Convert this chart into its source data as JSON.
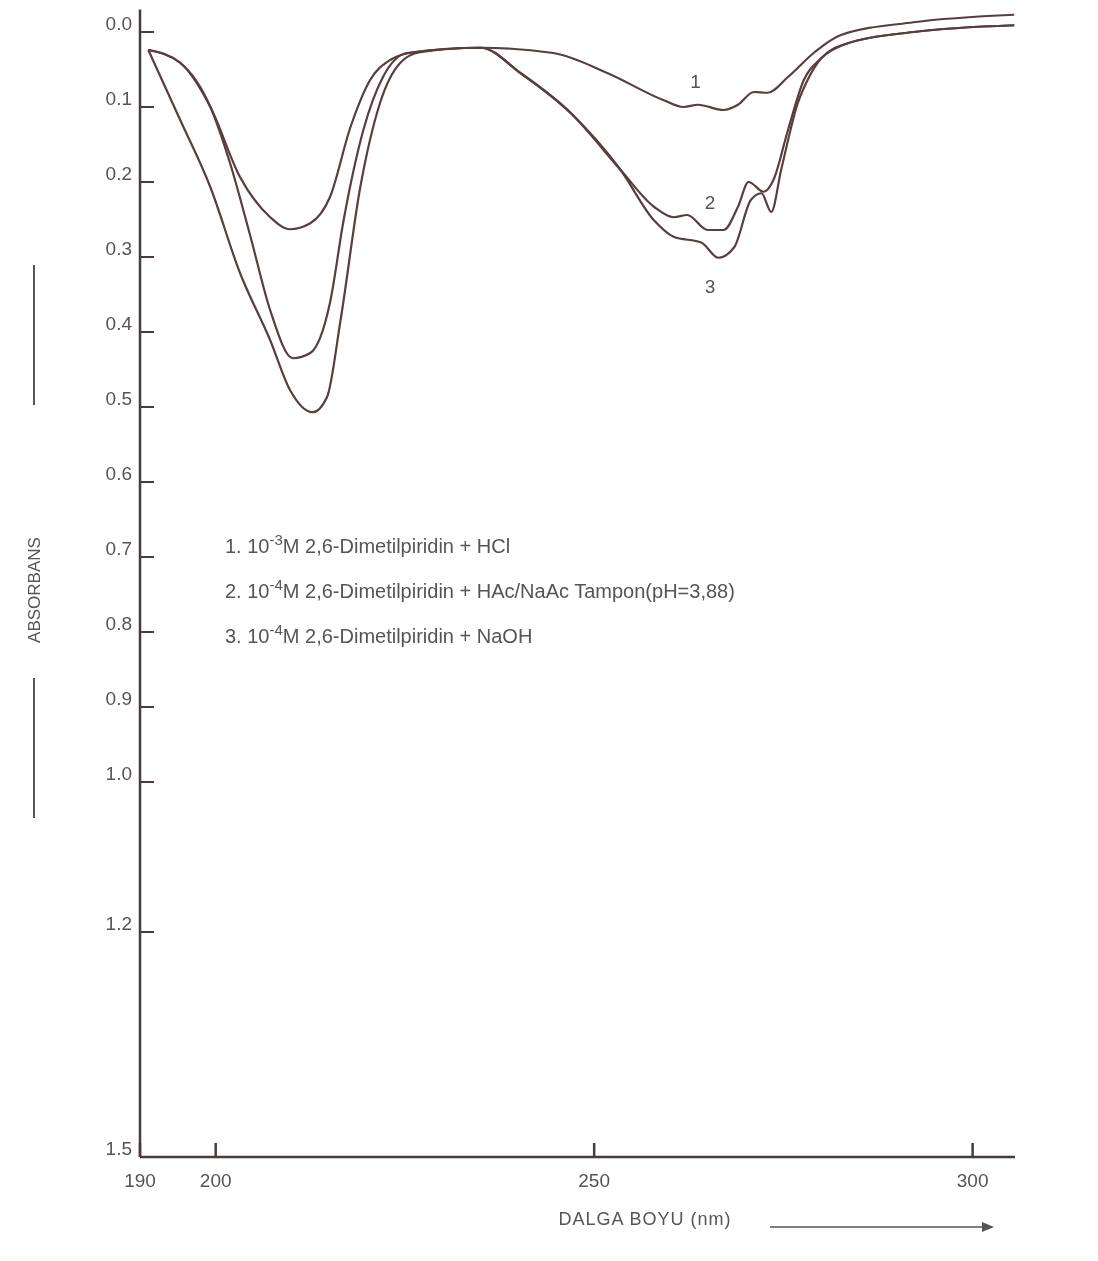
{
  "chart_data": {
    "type": "line",
    "xlabel": "DALGA BOYU (nm)",
    "ylabel": "ABSORBANS",
    "xlim": [
      190,
      305.6
    ],
    "ylim": [
      1.5,
      -0.03
    ],
    "xticks": [
      190,
      200,
      250,
      300
    ],
    "yticks": [
      {
        "value": 0,
        "label": "0.0"
      },
      0.1,
      0.2,
      0.3,
      0.4,
      0.5,
      0.6,
      0.7,
      0.8,
      0.9,
      {
        "value": 1,
        "label": "1.0"
      },
      1.2,
      1.5
    ],
    "grid": false,
    "marker": "none",
    "line_style": "solid",
    "series": [
      {
        "name": "1",
        "color": "#5a3d3d",
        "x": [
          191.1,
          195.3,
          199.3,
          203.2,
          207.2,
          209.8,
          212.5,
          215.1,
          217.8,
          220.4,
          223.1,
          226.1,
          235,
          244.6,
          251.8,
          259.2,
          261.8,
          263.7,
          267.1,
          269,
          271.1,
          272.9,
          275.6,
          279,
          282.6,
          292.2,
          305.5
        ],
        "values": [
          0.024,
          0.041,
          0.1,
          0.193,
          0.247,
          0.263,
          0.255,
          0.22,
          0.127,
          0.064,
          0.037,
          0.027,
          0.021,
          0.028,
          0.055,
          0.091,
          0.1,
          0.097,
          0.104,
          0.097,
          0.08,
          0.081,
          0.06,
          0.028,
          0.004,
          -0.013,
          -0.023
        ]
      },
      {
        "name": "2",
        "color": "#5a3d3d",
        "x": [
          191.1,
          195.3,
          199.3,
          201.9,
          204.6,
          207.2,
          210.2,
          212.5,
          215.1,
          216.9,
          219.5,
          222.1,
          225.3,
          235,
          240.3,
          246.9,
          253.5,
          257.9,
          260.5,
          262.3,
          265,
          267.1,
          269,
          270.4,
          272.4,
          273.7,
          275.6,
          277.7,
          280,
          283.5,
          292.2,
          305.5
        ],
        "values": [
          0.024,
          0.041,
          0.1,
          0.175,
          0.273,
          0.371,
          0.435,
          0.428,
          0.361,
          0.251,
          0.131,
          0.06,
          0.028,
          0.021,
          0.055,
          0.108,
          0.184,
          0.233,
          0.247,
          0.244,
          0.264,
          0.264,
          0.233,
          0.2,
          0.213,
          0.197,
          0.131,
          0.064,
          0.035,
          0.015,
          0,
          -0.009
        ]
      },
      {
        "name": "3",
        "color": "#5a3d3d",
        "x": [
          191.1,
          195.3,
          199.3,
          203.2,
          207.2,
          209.8,
          212.8,
          214.7,
          216.5,
          219.1,
          221.7,
          224.4,
          227,
          235,
          240.3,
          246.9,
          253.5,
          257.9,
          260.5,
          264.2,
          266.4,
          268.5,
          270.7,
          272.1,
          273.4,
          274.7,
          276.9,
          278.2,
          280,
          283.5,
          292.2,
          305.5
        ],
        "values": [
          0.024,
          0.117,
          0.207,
          0.321,
          0.411,
          0.477,
          0.507,
          0.487,
          0.384,
          0.207,
          0.095,
          0.041,
          0.027,
          0.021,
          0.055,
          0.108,
          0.184,
          0.251,
          0.273,
          0.281,
          0.301,
          0.287,
          0.224,
          0.215,
          0.24,
          0.184,
          0.095,
          0.064,
          0.035,
          0.015,
          0,
          -0.009
        ]
      }
    ],
    "annotations": [
      "1. 10$^{-3}$M 2,6-Dimetilpiridin + HCl",
      "2. 10$^{-4}$M 2,6-Dimetilpiridin + HAc/NaAc Tampon(pH=3,88)",
      "3. 10$^{-4}$M 2,6-Dimetilpiridin + NaOH"
    ]
  }
}
